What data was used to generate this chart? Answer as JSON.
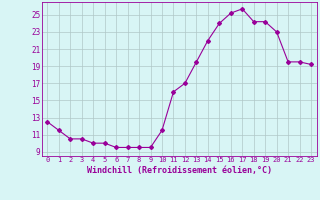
{
  "x": [
    0,
    1,
    2,
    3,
    4,
    5,
    6,
    7,
    8,
    9,
    10,
    11,
    12,
    13,
    14,
    15,
    16,
    17,
    18,
    19,
    20,
    21,
    22,
    23
  ],
  "y": [
    12.5,
    11.5,
    10.5,
    10.5,
    10.0,
    10.0,
    9.5,
    9.5,
    9.5,
    9.5,
    11.5,
    16.0,
    17.0,
    19.5,
    22.0,
    24.0,
    25.2,
    25.7,
    24.2,
    24.2,
    23.0,
    19.5,
    19.5,
    19.2
  ],
  "line_color": "#990099",
  "marker": "D",
  "marker_size": 2,
  "bg_color": "#d8f5f5",
  "grid_color": "#b0c8c8",
  "xlabel": "Windchill (Refroidissement éolien,°C)",
  "xlabel_color": "#990099",
  "yticks": [
    9,
    11,
    13,
    15,
    17,
    19,
    21,
    23,
    25
  ],
  "xtick_labels": [
    "0",
    "1",
    "2",
    "3",
    "4",
    "5",
    "6",
    "7",
    "8",
    "9",
    "10",
    "11",
    "12",
    "13",
    "14",
    "15",
    "16",
    "17",
    "18",
    "19",
    "20",
    "21",
    "22",
    "23"
  ],
  "ylim": [
    8.5,
    26.5
  ],
  "xlim": [
    -0.5,
    23.5
  ]
}
